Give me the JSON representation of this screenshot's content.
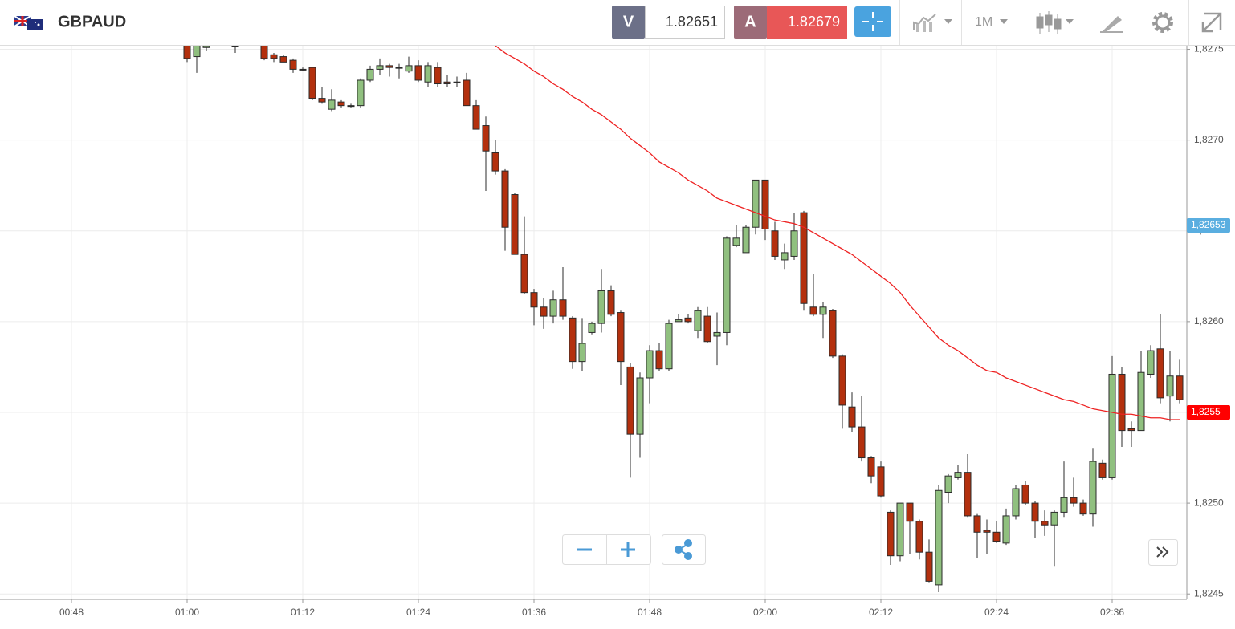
{
  "header": {
    "symbol": "GBPAUD",
    "bid_label": "V",
    "bid": "1.82651",
    "ask_label": "A",
    "ask": "1.82679",
    "timeframe": "1M"
  },
  "chart_data": {
    "type": "candlestick",
    "categories": [
      null,
      null,
      null,
      null,
      null,
      null,
      null,
      "00:48",
      null,
      null,
      null,
      null,
      null,
      null,
      null,
      null,
      null,
      null,
      null,
      "01:00",
      null,
      null,
      null,
      null,
      null,
      null,
      null,
      null,
      null,
      null,
      null,
      "01:12",
      null,
      null,
      null,
      null,
      null,
      null,
      null,
      null,
      null,
      null,
      null,
      "01:24",
      null,
      null,
      null,
      null,
      null,
      null,
      null,
      null,
      null,
      null,
      null,
      "01:36",
      null,
      null,
      null,
      null,
      null,
      null,
      null,
      null,
      null,
      null,
      null,
      "01:48",
      null,
      null,
      null,
      null,
      null,
      null,
      null,
      null,
      null,
      null,
      null,
      "02:00",
      null,
      null,
      null,
      null,
      null,
      null,
      null,
      null,
      null,
      null,
      null,
      "02:12",
      null,
      null,
      null,
      null,
      null,
      null,
      null,
      null,
      null,
      null,
      null,
      "02:24",
      null,
      null,
      null,
      null,
      null,
      null,
      null,
      null,
      null,
      null,
      null,
      "02:36",
      null,
      null,
      null,
      null,
      null,
      null,
      null
    ],
    "open": [
      null,
      null,
      null,
      null,
      null,
      null,
      null,
      null,
      null,
      null,
      null,
      null,
      null,
      null,
      null,
      null,
      null,
      null,
      null,
      1.82755,
      1.82746,
      1.82751,
      null,
      null,
      1.82752,
      null,
      null,
      1.82755,
      1.82747,
      1.82746,
      1.82744,
      1.82739,
      1.8274,
      1.82723,
      1.82717,
      1.82721,
      1.82719,
      1.82719,
      1.82733,
      1.82739,
      1.82741,
      1.8274,
      1.82738,
      1.82741,
      1.82732,
      1.8274,
      1.82732,
      1.82732,
      1.82733,
      1.82719,
      1.82708,
      1.82693,
      1.82683,
      1.8267,
      1.82637,
      1.82616,
      1.82608,
      1.82603,
      1.82612,
      1.82602,
      1.82578,
      1.82594,
      1.82599,
      1.82617,
      1.82605,
      1.82575,
      1.82538,
      1.82569,
      1.82584,
      1.82574,
      1.826,
      1.82602,
      1.82595,
      1.82603,
      1.82592,
      1.82594,
      1.82642,
      1.82638,
      1.82652,
      1.82678,
      1.8265,
      1.82634,
      1.82636,
      1.8266,
      1.82608,
      1.82604,
      1.82606,
      1.82581,
      1.82553,
      1.82542,
      1.82525,
      1.8252,
      1.82495,
      1.82471,
      1.825,
      1.8249,
      1.82473,
      1.82455,
      1.82506,
      1.82514,
      1.82517,
      1.82493,
      1.82485,
      1.82484,
      1.82478,
      1.82493,
      1.8251,
      1.825,
      1.8249,
      1.82488,
      1.82495,
      1.82503,
      1.825,
      1.82494,
      1.82522,
      1.82514,
      1.82571,
      1.82541,
      1.8254,
      1.82571,
      1.82585,
      1.82559,
      1.8257
    ],
    "high": [
      null,
      null,
      null,
      null,
      null,
      null,
      null,
      null,
      null,
      null,
      null,
      null,
      null,
      null,
      null,
      null,
      null,
      null,
      null,
      1.8276,
      1.8276,
      1.82755,
      null,
      null,
      1.82755,
      null,
      null,
      1.82758,
      1.82748,
      1.82747,
      1.82745,
      1.8274,
      1.8274,
      1.82729,
      1.82728,
      1.82722,
      1.8272,
      1.82734,
      1.82741,
      1.82745,
      1.82742,
      1.82742,
      1.82746,
      1.82744,
      1.82743,
      1.82743,
      1.82736,
      1.82735,
      1.82737,
      1.82722,
      1.82713,
      1.827,
      1.82684,
      1.82671,
      1.82658,
      1.82618,
      1.82613,
      1.82617,
      1.8263,
      1.82603,
      1.82602,
      1.826,
      1.82629,
      1.8262,
      1.82606,
      1.82577,
      1.82572,
      1.82587,
      1.82588,
      1.82601,
      1.82604,
      1.82604,
      1.82608,
      1.82608,
      1.82605,
      1.82647,
      1.82653,
      1.82653,
      1.82678,
      1.82678,
      1.82655,
      1.82643,
      1.8266,
      1.82661,
      1.82626,
      1.82611,
      1.82607,
      1.82582,
      1.82561,
      1.82559,
      1.82526,
      1.82523,
      1.82496,
      1.825,
      1.825,
      1.82491,
      1.8248,
      1.8251,
      1.82516,
      1.82521,
      1.82527,
      1.82494,
      1.82491,
      1.8249,
      1.82497,
      1.8251,
      1.82512,
      1.82501,
      1.82496,
      1.82496,
      1.82523,
      1.82514,
      1.82502,
      1.8253,
      1.82524,
      1.82581,
      1.82575,
      1.82545,
      1.82584,
      1.82587,
      1.82604,
      1.82584,
      1.82579
    ],
    "low": [
      null,
      null,
      null,
      null,
      null,
      null,
      null,
      null,
      null,
      null,
      null,
      null,
      null,
      null,
      null,
      null,
      null,
      null,
      null,
      1.82743,
      1.82737,
      1.82749,
      null,
      null,
      1.82748,
      null,
      null,
      1.82744,
      1.82743,
      1.82743,
      1.82737,
      1.82738,
      1.82722,
      1.8272,
      1.82716,
      1.82718,
      1.82718,
      1.82718,
      1.82732,
      1.82736,
      1.82735,
      1.82734,
      1.82737,
      1.82732,
      1.82729,
      1.82729,
      1.82729,
      1.82729,
      1.82719,
      1.82706,
      1.82672,
      1.82681,
      1.82639,
      1.82637,
      1.82615,
      1.82598,
      1.82596,
      1.82599,
      1.82601,
      1.82574,
      1.82573,
      1.82593,
      1.82594,
      1.82603,
      1.82565,
      1.82514,
      1.82525,
      1.82555,
      1.82573,
      1.82573,
      1.826,
      1.82599,
      1.82591,
      1.82588,
      1.82576,
      1.82587,
      1.82641,
      1.82638,
      1.82648,
      1.82645,
      1.82634,
      1.82629,
      1.82634,
      1.82606,
      1.82603,
      1.82591,
      1.8258,
      1.82541,
      1.82539,
      1.82523,
      1.82511,
      1.82503,
      1.82466,
      1.82468,
      1.82472,
      1.82469,
      1.82456,
      1.82451,
      1.825,
      1.82513,
      1.82492,
      1.8247,
      1.82472,
      1.82478,
      1.82477,
      1.82491,
      1.82499,
      1.82481,
      1.82482,
      1.82465,
      1.82492,
      1.82498,
      1.82493,
      1.82487,
      1.82513,
      1.82513,
      1.82531,
      1.82531,
      1.8254,
      1.82569,
      1.82555,
      1.82545,
      1.82555
    ],
    "close": [
      null,
      null,
      null,
      null,
      null,
      null,
      null,
      null,
      null,
      null,
      null,
      null,
      null,
      null,
      null,
      null,
      null,
      null,
      null,
      1.82745,
      1.82756,
      1.82752,
      null,
      null,
      1.82752,
      null,
      null,
      1.82745,
      1.82745,
      1.82743,
      1.82739,
      1.82739,
      1.82723,
      1.82721,
      1.82722,
      1.82719,
      1.82719,
      1.82733,
      1.82739,
      1.82741,
      1.8274,
      1.8274,
      1.82741,
      1.82733,
      1.82741,
      1.82731,
      1.82731,
      1.82732,
      1.82719,
      1.82706,
      1.82694,
      1.82683,
      1.82652,
      1.82637,
      1.82616,
      1.82608,
      1.82603,
      1.82612,
      1.82603,
      1.82578,
      1.82588,
      1.82599,
      1.82617,
      1.82604,
      1.82578,
      1.82538,
      1.82569,
      1.82584,
      1.82574,
      1.82599,
      1.82601,
      1.826,
      1.82606,
      1.82589,
      1.82594,
      1.82646,
      1.82646,
      1.82652,
      1.82678,
      1.82651,
      1.82636,
      1.82638,
      1.8265,
      1.8261,
      1.82604,
      1.82608,
      1.82581,
      1.82554,
      1.82542,
      1.82525,
      1.82515,
      1.82504,
      1.82471,
      1.825,
      1.8249,
      1.82473,
      1.82457,
      1.82507,
      1.82515,
      1.82517,
      1.82493,
      1.82484,
      1.82484,
      1.82479,
      1.82493,
      1.82508,
      1.825,
      1.8249,
      1.82488,
      1.82495,
      1.82503,
      1.825,
      1.82494,
      1.82523,
      1.82514,
      1.82571,
      1.8254,
      1.8254,
      1.82572,
      1.82584,
      1.82558,
      1.8257,
      1.82557
    ],
    "up_color": "#90c07f",
    "down_color": "#b3300e",
    "ma": {
      "color": "#ee2222",
      "values": [
        null,
        null,
        null,
        null,
        null,
        null,
        null,
        null,
        null,
        null,
        null,
        null,
        null,
        null,
        null,
        null,
        null,
        null,
        null,
        null,
        null,
        null,
        null,
        null,
        null,
        null,
        null,
        null,
        null,
        null,
        null,
        null,
        null,
        null,
        null,
        null,
        null,
        null,
        null,
        null,
        null,
        null,
        null,
        null,
        null,
        null,
        null,
        null,
        null,
        null,
        null,
        1.82752,
        1.82748,
        1.82745,
        1.82742,
        1.82738,
        1.82735,
        1.82731,
        1.82728,
        1.82724,
        1.82721,
        1.82717,
        1.82714,
        1.8271,
        1.82706,
        1.82701,
        1.82697,
        1.82693,
        1.82688,
        1.82685,
        1.82682,
        1.82678,
        1.82675,
        1.82672,
        1.82668,
        1.82666,
        1.82664,
        1.82662,
        1.8266,
        1.82658,
        1.82656,
        1.82655,
        1.82654,
        1.82652,
        1.82649,
        1.82646,
        1.82643,
        1.8264,
        1.82637,
        1.82633,
        1.82629,
        1.82625,
        1.82621,
        1.82616,
        1.82609,
        1.82603,
        1.82597,
        1.82591,
        1.82587,
        1.82584,
        1.8258,
        1.82576,
        1.82573,
        1.82572,
        1.82569,
        1.82567,
        1.82565,
        1.82563,
        1.82561,
        1.82559,
        1.82557,
        1.82556,
        1.82554,
        1.82552,
        1.82551,
        1.8255,
        1.82549,
        1.82549,
        1.82548,
        1.82547,
        1.82547,
        1.82546,
        1.82546
      ]
    },
    "ylim": [
      1.82447,
      1.82752
    ],
    "yticks": [
      {
        "value": 1.8245,
        "label": "1,8245"
      },
      {
        "value": 1.825,
        "label": "1,8250"
      },
      {
        "value": 1.8255,
        "label": "1,8255"
      },
      {
        "value": 1.826,
        "label": "1,8260"
      },
      {
        "value": 1.8265,
        "label": "1,8265"
      },
      {
        "value": 1.827,
        "label": "1,8270"
      },
      {
        "value": 1.8275,
        "label": "1,8275"
      }
    ],
    "grid": true,
    "price_tags": [
      {
        "value": 1.82653,
        "label": "1,82653",
        "color": "#5aaee0"
      },
      {
        "value": 1.8255,
        "label": "1,8255",
        "color": "#ff0000"
      }
    ]
  }
}
